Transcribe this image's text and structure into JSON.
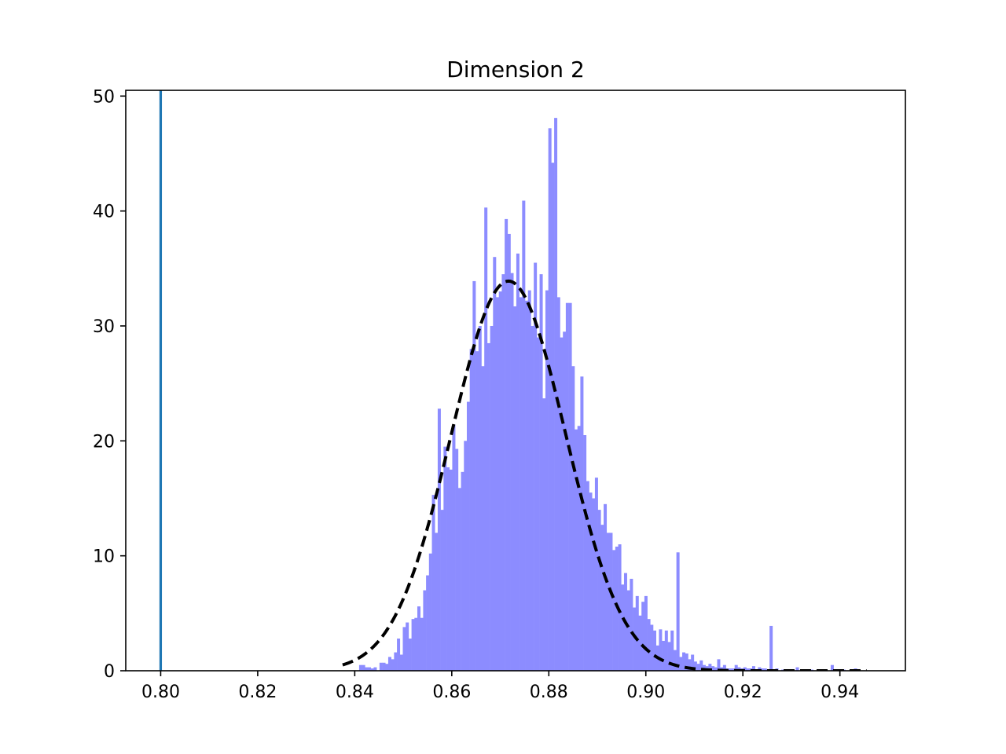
{
  "chart_data": {
    "type": "bar",
    "title": "Dimension 2",
    "xlabel": "",
    "ylabel": "",
    "xlim": [
      0.7928,
      0.9535
    ],
    "ylim": [
      0,
      50.5
    ],
    "x_ticks": [
      0.8,
      0.82,
      0.84,
      0.86,
      0.88,
      0.9,
      0.92,
      0.94
    ],
    "x_tick_labels": [
      "0.80",
      "0.82",
      "0.84",
      "0.86",
      "0.88",
      "0.90",
      "0.92",
      "0.94"
    ],
    "y_ticks": [
      0,
      10,
      20,
      30,
      40,
      50
    ],
    "y_tick_labels": [
      "0",
      "10",
      "20",
      "30",
      "40",
      "50"
    ],
    "grid": false,
    "histogram": {
      "color": "#8c8cff",
      "bins": [
        [
          0.8412,
          0.5
        ],
        [
          0.8418,
          0.5
        ],
        [
          0.8424,
          0.3
        ],
        [
          0.843,
          0.3
        ],
        [
          0.8436,
          0.2
        ],
        [
          0.8442,
          0.3
        ],
        [
          0.8454,
          0.7
        ],
        [
          0.846,
          0.7
        ],
        [
          0.8466,
          0.6
        ],
        [
          0.8472,
          1.2
        ],
        [
          0.8478,
          1.0
        ],
        [
          0.8484,
          1.6
        ],
        [
          0.849,
          2.8
        ],
        [
          0.8496,
          1.4
        ],
        [
          0.8502,
          3.8
        ],
        [
          0.8508,
          4.2
        ],
        [
          0.8514,
          2.8
        ],
        [
          0.852,
          4.5
        ],
        [
          0.8526,
          4.6
        ],
        [
          0.8532,
          5.6
        ],
        [
          0.8538,
          4.6
        ],
        [
          0.8544,
          7.0
        ],
        [
          0.855,
          8.3
        ],
        [
          0.8556,
          10.2
        ],
        [
          0.8562,
          15.3
        ],
        [
          0.8568,
          12.0
        ],
        [
          0.8574,
          22.8
        ],
        [
          0.858,
          14.0
        ],
        [
          0.8586,
          19.5
        ],
        [
          0.8592,
          17.7
        ],
        [
          0.8598,
          17.5
        ],
        [
          0.8604,
          21.4
        ],
        [
          0.861,
          19.3
        ],
        [
          0.8616,
          15.9
        ],
        [
          0.8622,
          17.3
        ],
        [
          0.8628,
          20.0
        ],
        [
          0.8634,
          23.4
        ],
        [
          0.864,
          28.0
        ],
        [
          0.8646,
          33.9
        ],
        [
          0.8652,
          27.8
        ],
        [
          0.8658,
          30.0
        ],
        [
          0.8664,
          26.5
        ],
        [
          0.867,
          40.3
        ],
        [
          0.8676,
          28.5
        ],
        [
          0.8682,
          30.0
        ],
        [
          0.8688,
          36.0
        ],
        [
          0.8694,
          32.5
        ],
        [
          0.87,
          33.0
        ],
        [
          0.8706,
          34.5
        ],
        [
          0.8712,
          39.3
        ],
        [
          0.8718,
          38.0
        ],
        [
          0.8724,
          34.6
        ],
        [
          0.873,
          31.7
        ],
        [
          0.8736,
          36.3
        ],
        [
          0.8742,
          32.5
        ],
        [
          0.8748,
          40.9
        ],
        [
          0.8754,
          32.2
        ],
        [
          0.876,
          33.1
        ],
        [
          0.8766,
          30.0
        ],
        [
          0.8772,
          35.5
        ],
        [
          0.8778,
          29.0
        ],
        [
          0.8784,
          34.5
        ],
        [
          0.879,
          23.7
        ],
        [
          0.8796,
          33.1
        ],
        [
          0.8802,
          47.2
        ],
        [
          0.8808,
          44.2
        ],
        [
          0.8814,
          48.1
        ],
        [
          0.882,
          32.5
        ],
        [
          0.8826,
          29.0
        ],
        [
          0.8832,
          29.5
        ],
        [
          0.8838,
          32.0
        ],
        [
          0.8844,
          32.0
        ],
        [
          0.885,
          26.5
        ],
        [
          0.8856,
          21.0
        ],
        [
          0.8862,
          21.3
        ],
        [
          0.8868,
          25.6
        ],
        [
          0.8874,
          20.5
        ],
        [
          0.888,
          16.5
        ],
        [
          0.8886,
          15.5
        ],
        [
          0.8892,
          15.0
        ],
        [
          0.8898,
          16.8
        ],
        [
          0.8904,
          14.0
        ],
        [
          0.891,
          12.7
        ],
        [
          0.8916,
          14.5
        ],
        [
          0.8922,
          12.0
        ],
        [
          0.8928,
          12.0
        ],
        [
          0.8934,
          10.5
        ],
        [
          0.894,
          10.8
        ],
        [
          0.8946,
          11.0
        ],
        [
          0.8952,
          7.5
        ],
        [
          0.8958,
          8.5
        ],
        [
          0.8964,
          7.0
        ],
        [
          0.897,
          8.0
        ],
        [
          0.8976,
          5.5
        ],
        [
          0.8982,
          6.5
        ],
        [
          0.8988,
          4.8
        ],
        [
          0.8994,
          6.0
        ],
        [
          0.9,
          6.5
        ],
        [
          0.9006,
          4.5
        ],
        [
          0.9012,
          4.0
        ],
        [
          0.9018,
          3.5
        ],
        [
          0.9024,
          2.2
        ],
        [
          0.903,
          3.6
        ],
        [
          0.9036,
          2.6
        ],
        [
          0.9042,
          3.5
        ],
        [
          0.9048,
          2.5
        ],
        [
          0.9054,
          3.5
        ],
        [
          0.906,
          1.8
        ],
        [
          0.9066,
          10.3
        ],
        [
          0.9072,
          1.2
        ],
        [
          0.9078,
          1.6
        ],
        [
          0.9084,
          1.5
        ],
        [
          0.909,
          1.0
        ],
        [
          0.9096,
          1.4
        ],
        [
          0.9102,
          0.8
        ],
        [
          0.9108,
          0.6
        ],
        [
          0.9114,
          0.9
        ],
        [
          0.912,
          0.5
        ],
        [
          0.9126,
          0.4
        ],
        [
          0.9132,
          0.6
        ],
        [
          0.9138,
          0.4
        ],
        [
          0.9144,
          0.3
        ],
        [
          0.915,
          1.0
        ],
        [
          0.9156,
          0.3
        ],
        [
          0.9162,
          0.5
        ],
        [
          0.9168,
          0.2
        ],
        [
          0.9174,
          0.2
        ],
        [
          0.918,
          0.2
        ],
        [
          0.9186,
          0.5
        ],
        [
          0.9192,
          0.3
        ],
        [
          0.9198,
          0.2
        ],
        [
          0.9204,
          0.3
        ],
        [
          0.921,
          0.2
        ],
        [
          0.9216,
          0.2
        ],
        [
          0.9222,
          0.4
        ],
        [
          0.9234,
          0.3
        ],
        [
          0.924,
          0.2
        ],
        [
          0.9246,
          0.2
        ],
        [
          0.9252,
          0.1
        ],
        [
          0.9258,
          3.9
        ],
        [
          0.927,
          0.2
        ],
        [
          0.9282,
          0.1
        ],
        [
          0.93,
          0.1
        ],
        [
          0.9312,
          0.3
        ],
        [
          0.9342,
          0.1
        ],
        [
          0.936,
          0.1
        ],
        [
          0.9384,
          0.5
        ],
        [
          0.9408,
          0.1
        ],
        [
          0.9432,
          0.2
        ]
      ],
      "bin_width": 0.0006
    },
    "normal_fit": {
      "style": "dashed",
      "color": "#000000",
      "mean": 0.8717,
      "std": 0.0118,
      "peak": 33.9,
      "x_range": [
        0.8375,
        0.9455
      ]
    },
    "vertical_line": {
      "x": 0.8,
      "color": "#1f77b4"
    }
  }
}
